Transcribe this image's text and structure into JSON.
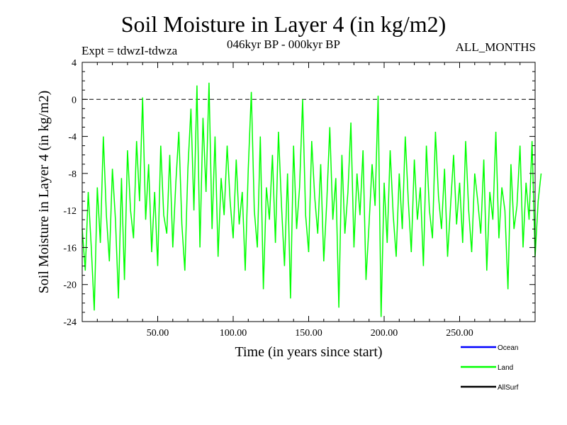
{
  "chart_data": {
    "type": "line",
    "title": "Soil Moisture in Layer 4 (in kg/m2)",
    "subtitle_left": "Expt = tdwzI-tdwza",
    "subtitle_center": "046kyr BP - 000kyr BP",
    "subtitle_right": "ALL_MONTHS",
    "xlabel": "Time (in years since start)",
    "ylabel": "Soil Moisture in Layer 4 (in kg/m2)",
    "xlim": [
      0,
      300
    ],
    "ylim": [
      -24,
      4
    ],
    "x_ticks": [
      50,
      100,
      150,
      200,
      250
    ],
    "x_tick_labels": [
      "50.00",
      "100.00",
      "150.00",
      "200.00",
      "250.00"
    ],
    "y_ticks": [
      4,
      0,
      -4,
      -8,
      -12,
      -16,
      -20,
      -24
    ],
    "y_tick_labels": [
      "4",
      "0",
      "-4",
      "-8",
      "-12",
      "-16",
      "-20",
      "-24"
    ],
    "reference_line": {
      "y": 0,
      "style": "dashed"
    },
    "series": [
      {
        "name": "Ocean",
        "color": "#0000ff",
        "values": []
      },
      {
        "name": "Land",
        "color": "#00ff00",
        "x_start": 0,
        "x_step": 2,
        "values": [
          -14.0,
          -18.5,
          -10.0,
          -16.0,
          -22.8,
          -9.5,
          -15.5,
          -4.0,
          -12.5,
          -17.5,
          -7.5,
          -13.0,
          -21.5,
          -8.5,
          -19.5,
          -5.5,
          -12.0,
          -15.0,
          -4.5,
          -11.0,
          0.2,
          -13.0,
          -7.0,
          -16.5,
          -10.0,
          -18.0,
          -5.0,
          -12.5,
          -14.5,
          -6.0,
          -16.0,
          -9.0,
          -3.5,
          -13.5,
          -18.5,
          -7.5,
          -1.0,
          -12.0,
          1.5,
          -16.0,
          -2.0,
          -10.0,
          1.8,
          -14.0,
          -4.0,
          -17.0,
          -8.5,
          -12.5,
          -5.0,
          -11.0,
          -15.0,
          -6.5,
          -13.5,
          -10.0,
          -18.5,
          -7.5,
          0.8,
          -12.0,
          -16.0,
          -4.0,
          -20.5,
          -9.5,
          -13.0,
          -6.0,
          -15.5,
          -3.5,
          -11.5,
          -18.0,
          -8.0,
          -21.5,
          -5.0,
          -14.0,
          -9.5,
          0.0,
          -12.5,
          -16.5,
          -4.5,
          -10.5,
          -14.5,
          -7.0,
          -17.5,
          -11.0,
          -3.0,
          -13.0,
          -8.5,
          -22.5,
          -6.0,
          -14.5,
          -10.0,
          -2.5,
          -16.0,
          -8.0,
          -12.5,
          -5.5,
          -19.5,
          -13.5,
          -7.0,
          -11.5,
          0.4,
          -23.5,
          -9.0,
          -15.5,
          -5.5,
          -12.5,
          -17.0,
          -8.0,
          -14.0,
          -4.0,
          -11.0,
          -16.5,
          -6.5,
          -13.0,
          -9.5,
          -18.0,
          -5.0,
          -12.0,
          -15.0,
          -3.5,
          -10.5,
          -14.0,
          -7.5,
          -17.0,
          -11.5,
          -6.0,
          -13.5,
          -9.0,
          -15.5,
          -4.5,
          -12.0,
          -16.5,
          -8.0,
          -11.0,
          -14.5,
          -6.5,
          -18.5,
          -10.0,
          -13.0,
          -3.5,
          -15.0,
          -9.5,
          -12.0,
          -20.5,
          -7.0,
          -14.0,
          -11.5,
          -5.0,
          -16.0,
          -9.0,
          -13.0,
          -4.5,
          -17.0,
          -11.0,
          -8.0
        ]
      },
      {
        "name": "AllSurf",
        "color": "#000000",
        "values": []
      }
    ],
    "legend": {
      "position": "bottom-right",
      "entries": [
        "Ocean",
        "Land",
        "AllSurf"
      ]
    }
  }
}
